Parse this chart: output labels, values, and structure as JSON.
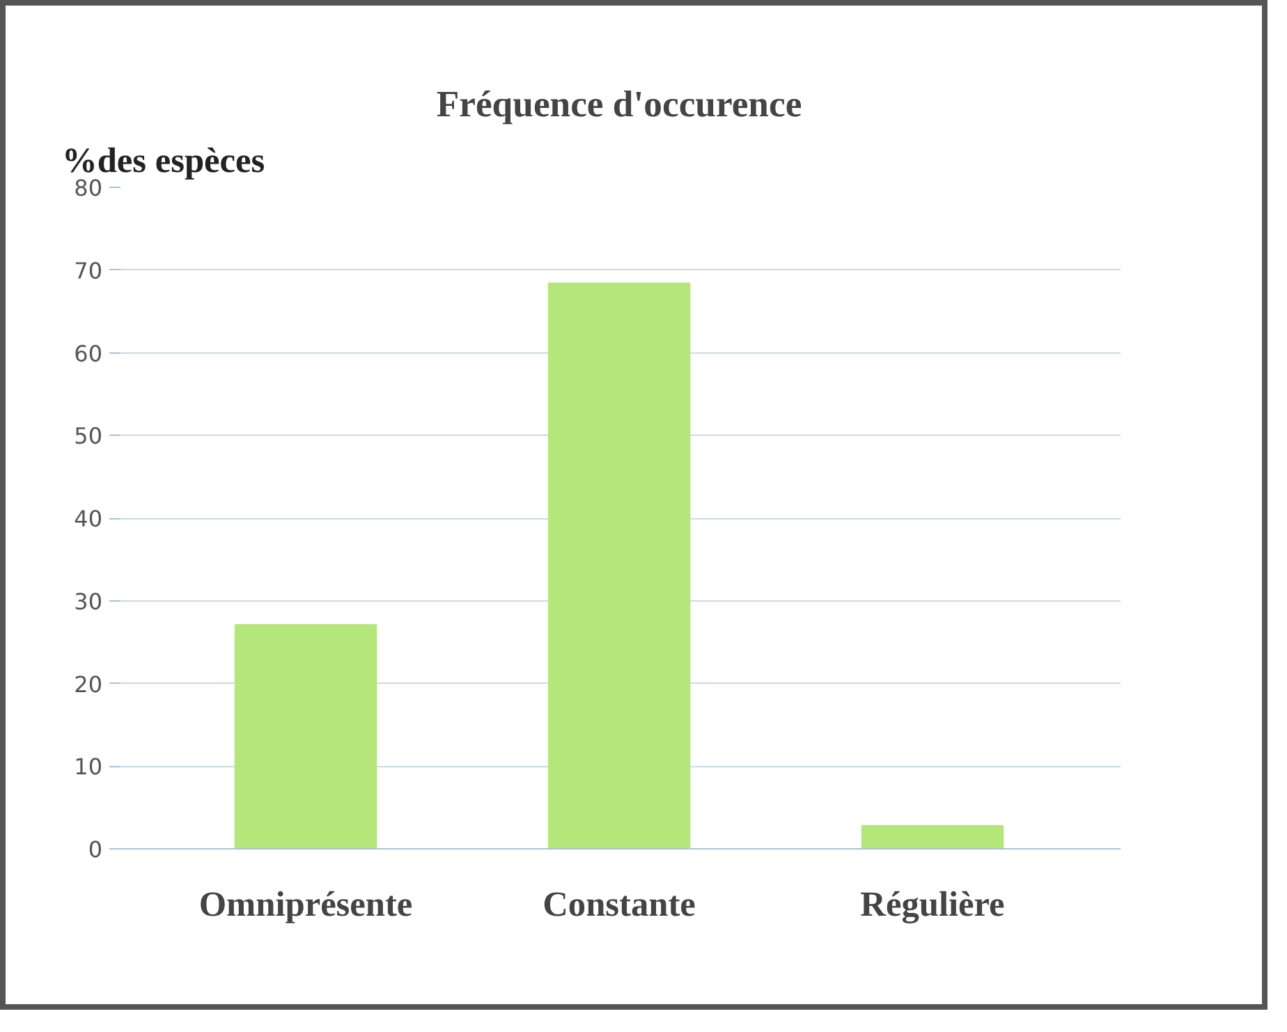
{
  "chart_data": {
    "type": "bar",
    "title": "Fréquence d'occurence",
    "ylabel": "%des espèces",
    "categories": [
      "Omniprésente",
      "Constante",
      "Régulière"
    ],
    "values": [
      27.1,
      68.4,
      2.8
    ],
    "color": "#b5e67a",
    "ylim": [
      0,
      80
    ],
    "yticks": [
      0,
      10,
      20,
      30,
      40,
      50,
      60,
      70,
      80
    ],
    "grid": "y"
  }
}
